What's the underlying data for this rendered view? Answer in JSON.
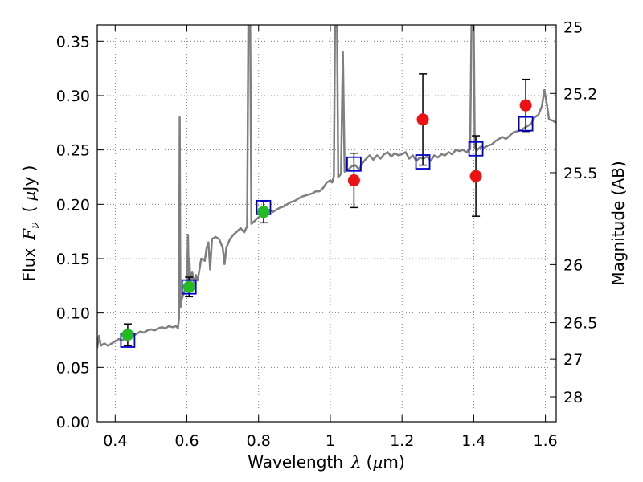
{
  "chart_data": {
    "type": "scatter",
    "title": "",
    "xlabel": {
      "prefix": "Wavelength",
      "symbol": "λ",
      "unit_open": "(",
      "unit_mu": "μ",
      "unit_rest": "m)"
    },
    "ylabel": {
      "prefix": "Flux",
      "symbol": "F",
      "subscript": "ν",
      "unit_open": "(",
      "unit_mu": "μ",
      "unit_rest": "Jy )"
    },
    "y2label": "Magnitude (AB)",
    "xlim": [
      0.35,
      1.63
    ],
    "ylim": [
      0.0,
      0.365
    ],
    "grid": true,
    "x_ticks": [
      {
        "value": 0.4,
        "label": "0.4"
      },
      {
        "value": 0.6,
        "label": "0.6"
      },
      {
        "value": 0.8,
        "label": "0.8"
      },
      {
        "value": 1.0,
        "label": "1"
      },
      {
        "value": 1.2,
        "label": "1.2"
      },
      {
        "value": 1.4,
        "label": "1.4"
      },
      {
        "value": 1.6,
        "label": "1.6"
      }
    ],
    "y_ticks": [
      {
        "value": 0.0,
        "label": "0.00"
      },
      {
        "value": 0.05,
        "label": "0.05"
      },
      {
        "value": 0.1,
        "label": "0.10"
      },
      {
        "value": 0.15,
        "label": "0.15"
      },
      {
        "value": 0.2,
        "label": "0.20"
      },
      {
        "value": 0.25,
        "label": "0.25"
      },
      {
        "value": 0.3,
        "label": "0.30"
      },
      {
        "value": 0.35,
        "label": "0.35"
      }
    ],
    "y2_ticks": [
      {
        "mag": 25,
        "label": "25"
      },
      {
        "mag": 25.2,
        "label": "25.2"
      },
      {
        "mag": 25.5,
        "label": "25.5"
      },
      {
        "mag": 26,
        "label": "26"
      },
      {
        "mag": 26.5,
        "label": "26.5"
      },
      {
        "mag": 27,
        "label": "27"
      },
      {
        "mag": 28,
        "label": "28"
      }
    ],
    "template_spectrum": {
      "color": "#7f7f7f",
      "points": [
        [
          0.35,
          0.068
        ],
        [
          0.355,
          0.079
        ],
        [
          0.36,
          0.07
        ],
        [
          0.37,
          0.072
        ],
        [
          0.38,
          0.07
        ],
        [
          0.39,
          0.072
        ],
        [
          0.4,
          0.074
        ],
        [
          0.41,
          0.076
        ],
        [
          0.42,
          0.075
        ],
        [
          0.43,
          0.077
        ],
        [
          0.44,
          0.078
        ],
        [
          0.45,
          0.079
        ],
        [
          0.46,
          0.081
        ],
        [
          0.47,
          0.083
        ],
        [
          0.48,
          0.082
        ],
        [
          0.49,
          0.084
        ],
        [
          0.5,
          0.085
        ],
        [
          0.51,
          0.084
        ],
        [
          0.52,
          0.086
        ],
        [
          0.53,
          0.087
        ],
        [
          0.54,
          0.086
        ],
        [
          0.55,
          0.088
        ],
        [
          0.56,
          0.087
        ],
        [
          0.57,
          0.088
        ],
        [
          0.575,
          0.086
        ],
        [
          0.578,
          0.095
        ],
        [
          0.58,
          0.28
        ],
        [
          0.582,
          0.105
        ],
        [
          0.585,
          0.112
        ],
        [
          0.59,
          0.117
        ],
        [
          0.595,
          0.122
        ],
        [
          0.6,
          0.12
        ],
        [
          0.603,
          0.172
        ],
        [
          0.605,
          0.13
        ],
        [
          0.607,
          0.15
        ],
        [
          0.61,
          0.128
        ],
        [
          0.615,
          0.138
        ],
        [
          0.62,
          0.126
        ],
        [
          0.625,
          0.135
        ],
        [
          0.63,
          0.13
        ],
        [
          0.64,
          0.15
        ],
        [
          0.65,
          0.148
        ],
        [
          0.655,
          0.16
        ],
        [
          0.66,
          0.165
        ],
        [
          0.665,
          0.14
        ],
        [
          0.67,
          0.168
        ],
        [
          0.68,
          0.17
        ],
        [
          0.69,
          0.168
        ],
        [
          0.7,
          0.16
        ],
        [
          0.705,
          0.145
        ],
        [
          0.71,
          0.16
        ],
        [
          0.72,
          0.168
        ],
        [
          0.73,
          0.172
        ],
        [
          0.74,
          0.175
        ],
        [
          0.75,
          0.178
        ],
        [
          0.76,
          0.174
        ],
        [
          0.768,
          0.18
        ],
        [
          0.772,
          0.4
        ],
        [
          0.776,
          0.4
        ],
        [
          0.78,
          0.182
        ],
        [
          0.79,
          0.185
        ],
        [
          0.8,
          0.188
        ],
        [
          0.81,
          0.19
        ],
        [
          0.82,
          0.192
        ],
        [
          0.83,
          0.195
        ],
        [
          0.84,
          0.193
        ],
        [
          0.85,
          0.195
        ],
        [
          0.86,
          0.197
        ],
        [
          0.87,
          0.198
        ],
        [
          0.88,
          0.2
        ],
        [
          0.89,
          0.202
        ],
        [
          0.9,
          0.203
        ],
        [
          0.91,
          0.205
        ],
        [
          0.92,
          0.207
        ],
        [
          0.93,
          0.208
        ],
        [
          0.94,
          0.209
        ],
        [
          0.95,
          0.21
        ],
        [
          0.96,
          0.212
        ],
        [
          0.97,
          0.212
        ],
        [
          0.98,
          0.215
        ],
        [
          0.99,
          0.22
        ],
        [
          1.0,
          0.222
        ],
        [
          1.005,
          0.22
        ],
        [
          1.01,
          0.226
        ],
        [
          1.014,
          0.4
        ],
        [
          1.018,
          0.4
        ],
        [
          1.022,
          0.225
        ],
        [
          1.03,
          0.228
        ],
        [
          1.035,
          0.34
        ],
        [
          1.04,
          0.23
        ],
        [
          1.05,
          0.232
        ],
        [
          1.06,
          0.235
        ],
        [
          1.07,
          0.236
        ],
        [
          1.08,
          0.232
        ],
        [
          1.09,
          0.238
        ],
        [
          1.1,
          0.242
        ],
        [
          1.11,
          0.245
        ],
        [
          1.12,
          0.241
        ],
        [
          1.13,
          0.245
        ],
        [
          1.14,
          0.242
        ],
        [
          1.15,
          0.246
        ],
        [
          1.16,
          0.248
        ],
        [
          1.17,
          0.244
        ],
        [
          1.18,
          0.247
        ],
        [
          1.19,
          0.245
        ],
        [
          1.2,
          0.246
        ],
        [
          1.21,
          0.248
        ],
        [
          1.22,
          0.242
        ],
        [
          1.23,
          0.245
        ],
        [
          1.24,
          0.24
        ],
        [
          1.25,
          0.243
        ],
        [
          1.26,
          0.242
        ],
        [
          1.27,
          0.244
        ],
        [
          1.28,
          0.24
        ],
        [
          1.29,
          0.245
        ],
        [
          1.3,
          0.243
        ],
        [
          1.31,
          0.246
        ],
        [
          1.32,
          0.245
        ],
        [
          1.33,
          0.248
        ],
        [
          1.34,
          0.246
        ],
        [
          1.35,
          0.25
        ],
        [
          1.36,
          0.249
        ],
        [
          1.37,
          0.25
        ],
        [
          1.38,
          0.248
        ],
        [
          1.39,
          0.251
        ],
        [
          1.395,
          0.4
        ],
        [
          1.399,
          0.4
        ],
        [
          1.403,
          0.252
        ],
        [
          1.41,
          0.25
        ],
        [
          1.42,
          0.253
        ],
        [
          1.43,
          0.252
        ],
        [
          1.44,
          0.254
        ],
        [
          1.45,
          0.255
        ],
        [
          1.46,
          0.258
        ],
        [
          1.47,
          0.26
        ],
        [
          1.48,
          0.262
        ],
        [
          1.49,
          0.26
        ],
        [
          1.5,
          0.263
        ],
        [
          1.51,
          0.266
        ],
        [
          1.52,
          0.267
        ],
        [
          1.53,
          0.268
        ],
        [
          1.54,
          0.27
        ],
        [
          1.55,
          0.272
        ],
        [
          1.56,
          0.274
        ],
        [
          1.57,
          0.28
        ],
        [
          1.58,
          0.282
        ],
        [
          1.59,
          0.29
        ],
        [
          1.597,
          0.305
        ],
        [
          1.605,
          0.29
        ],
        [
          1.61,
          0.278
        ],
        [
          1.62,
          0.277
        ],
        [
          1.63,
          0.275
        ]
      ]
    },
    "series": [
      {
        "marker": "circle",
        "color": "#22bb22",
        "points": [
          {
            "x": 0.435,
            "y": 0.08,
            "yerr": 0.01
          },
          {
            "x": 0.606,
            "y": 0.124,
            "yerr": 0.009
          },
          {
            "x": 0.814,
            "y": 0.193,
            "yerr": 0.01
          }
        ]
      },
      {
        "marker": "circle",
        "color": "#ee1111",
        "points": [
          {
            "x": 1.066,
            "y": 0.222,
            "yerr": 0.025
          },
          {
            "x": 1.258,
            "y": 0.278,
            "yerr": 0.042
          },
          {
            "x": 1.406,
            "y": 0.226,
            "yerr": 0.037
          },
          {
            "x": 1.545,
            "y": 0.291,
            "yerr": 0.024
          }
        ]
      },
      {
        "marker": "square-open",
        "color": "#0000cc",
        "points": [
          {
            "x": 0.435,
            "y": 0.075
          },
          {
            "x": 0.606,
            "y": 0.124
          },
          {
            "x": 0.814,
            "y": 0.197
          },
          {
            "x": 1.066,
            "y": 0.237
          },
          {
            "x": 1.258,
            "y": 0.239
          },
          {
            "x": 1.406,
            "y": 0.251
          },
          {
            "x": 1.545,
            "y": 0.274
          }
        ]
      }
    ]
  }
}
